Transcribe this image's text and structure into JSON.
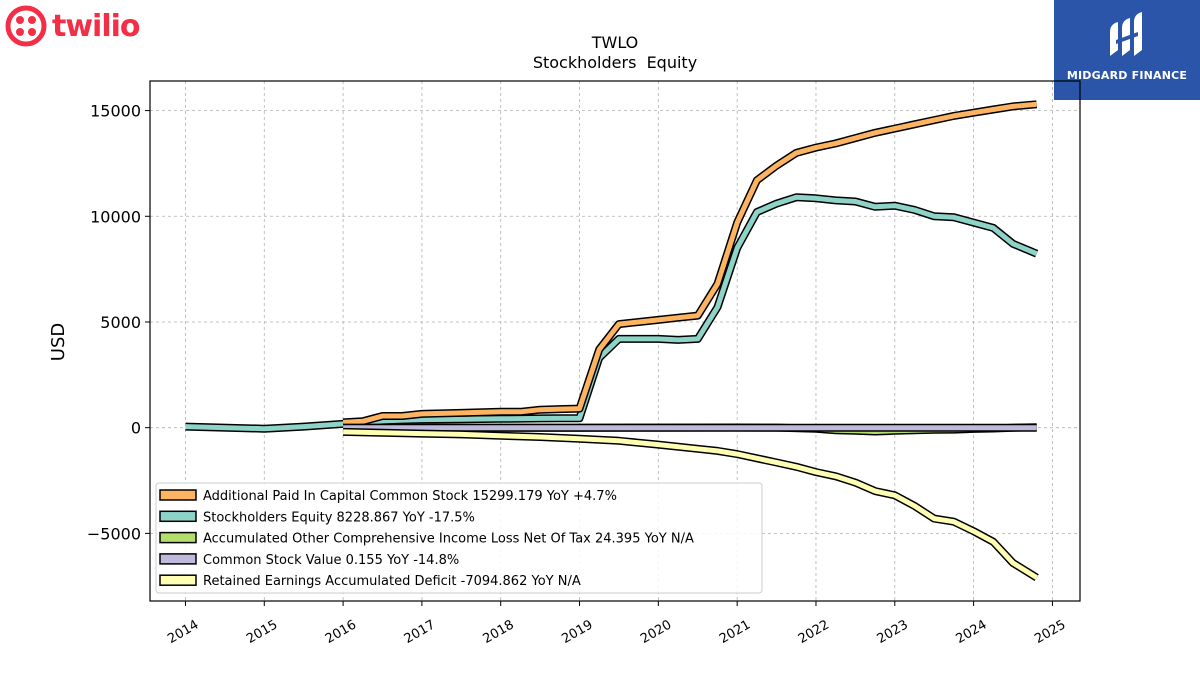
{
  "logos": {
    "left": {
      "text": "twilio",
      "color": "#f22f46"
    },
    "right": {
      "text": "MIDGARD FINANCE",
      "background": "#2a55a8"
    }
  },
  "chart_data": {
    "type": "line",
    "title": "TWLO",
    "subtitle": "Stockholders  Equity",
    "xlabel": "",
    "ylabel": "USD",
    "xlim": [
      2013.55,
      2025.35
    ],
    "ylim": [
      -8200,
      16400
    ],
    "xticks": [
      2014,
      2015,
      2016,
      2017,
      2018,
      2019,
      2020,
      2021,
      2022,
      2023,
      2024,
      2025
    ],
    "xtick_labels": [
      "2014",
      "2015",
      "2016",
      "2017",
      "2018",
      "2019",
      "2020",
      "2021",
      "2022",
      "2023",
      "2024",
      "2025"
    ],
    "yticks": [
      -5000,
      0,
      5000,
      10000,
      15000
    ],
    "ytick_labels": [
      "−5000",
      "0",
      "5000",
      "10000",
      "15000"
    ],
    "grid": true,
    "legend_position": "lower-left",
    "series": [
      {
        "name": "Stockholders Equity",
        "legend": "Stockholders Equity  8228.867 YoY -17.5%",
        "color": "#8dd3c7",
        "x": [
          2014.0,
          2015.0,
          2015.5,
          2016.0,
          2016.25,
          2016.5,
          2016.75,
          2017.0,
          2017.5,
          2018.0,
          2018.25,
          2018.5,
          2018.75,
          2019.0,
          2019.25,
          2019.5,
          2019.75,
          2020.0,
          2020.25,
          2020.5,
          2020.75,
          2021.0,
          2021.25,
          2021.5,
          2021.75,
          2022.0,
          2022.25,
          2022.5,
          2022.75,
          2023.0,
          2023.25,
          2023.5,
          2023.75,
          2024.0,
          2024.25,
          2024.5,
          2024.8
        ],
        "y": [
          50,
          -50,
          50,
          180,
          250,
          320,
          360,
          380,
          400,
          420,
          430,
          440,
          450,
          450,
          3300,
          4200,
          4200,
          4200,
          4150,
          4200,
          5700,
          8500,
          10200,
          10600,
          10900,
          10850,
          10750,
          10700,
          10450,
          10500,
          10300,
          10000,
          9950,
          9700,
          9450,
          8700,
          8229
        ]
      },
      {
        "name": "Additional Paid In Capital Common Stock",
        "legend": "Additional Paid In Capital Common Stock  15299.179 YoY +4.7%",
        "color": "#fdb462",
        "x": [
          2016.0,
          2016.25,
          2016.5,
          2016.75,
          2017.0,
          2017.5,
          2018.0,
          2018.25,
          2018.5,
          2018.75,
          2019.0,
          2019.25,
          2019.5,
          2019.75,
          2020.0,
          2020.25,
          2020.5,
          2020.75,
          2021.0,
          2021.25,
          2021.5,
          2021.75,
          2022.0,
          2022.25,
          2022.5,
          2022.75,
          2023.0,
          2023.25,
          2023.5,
          2023.75,
          2024.0,
          2024.25,
          2024.5,
          2024.8
        ],
        "y": [
          250,
          300,
          550,
          550,
          650,
          700,
          750,
          750,
          850,
          880,
          900,
          3700,
          4900,
          5000,
          5100,
          5200,
          5300,
          6800,
          9700,
          11700,
          12400,
          13000,
          13250,
          13450,
          13700,
          13950,
          14150,
          14350,
          14550,
          14750,
          14900,
          15050,
          15200,
          15299
        ]
      },
      {
        "name": "Accumulated Other Comprehensive Income Loss Net Of Tax",
        "legend": "Accumulated Other Comprehensive Income Loss Net Of Tax  24.395 YoY N/A",
        "color": "#b3de69",
        "x": [
          2016.0,
          2017.0,
          2018.0,
          2019.0,
          2020.0,
          2021.0,
          2021.5,
          2022.0,
          2022.25,
          2022.5,
          2022.75,
          2023.0,
          2023.25,
          2023.5,
          2023.75,
          2024.0,
          2024.25,
          2024.5,
          2024.8
        ],
        "y": [
          0,
          0,
          -5,
          0,
          5,
          10,
          5,
          -50,
          -120,
          -150,
          -180,
          -150,
          -120,
          -100,
          -90,
          -60,
          -40,
          0,
          24
        ]
      },
      {
        "name": "Common Stock Value",
        "legend": "Common Stock Value  0.155 YoY -14.8%",
        "color": "#bebada",
        "x": [
          2016.0,
          2018.0,
          2020.0,
          2022.0,
          2024.0,
          2024.8
        ],
        "y": [
          0.1,
          0.1,
          0.15,
          0.18,
          0.18,
          0.155
        ]
      },
      {
        "name": "Retained Earnings Accumulated Deficit",
        "legend": "Retained Earnings Accumulated Deficit  -7094.862 YoY N/A",
        "color": "#ffffb3",
        "x": [
          2016.0,
          2016.5,
          2017.0,
          2017.5,
          2018.0,
          2018.5,
          2019.0,
          2019.5,
          2020.0,
          2020.5,
          2020.75,
          2021.0,
          2021.25,
          2021.5,
          2021.75,
          2022.0,
          2022.25,
          2022.5,
          2022.75,
          2023.0,
          2023.25,
          2023.5,
          2023.75,
          2024.0,
          2024.25,
          2024.5,
          2024.8
        ],
        "y": [
          -200,
          -240,
          -280,
          -320,
          -380,
          -440,
          -520,
          -620,
          -800,
          -1000,
          -1100,
          -1250,
          -1450,
          -1650,
          -1850,
          -2100,
          -2300,
          -2600,
          -3000,
          -3200,
          -3700,
          -4300,
          -4450,
          -4900,
          -5400,
          -6400,
          -7095
        ]
      }
    ],
    "legend_order": [
      "Additional Paid In Capital Common Stock",
      "Stockholders Equity",
      "Accumulated Other Comprehensive Income Loss Net Of Tax",
      "Common Stock Value",
      "Retained Earnings Accumulated Deficit"
    ],
    "draw_order": [
      "Stockholders Equity",
      "Additional Paid In Capital Common Stock",
      "Accumulated Other Comprehensive Income Loss Net Of Tax",
      "Common Stock Value",
      "Retained Earnings Accumulated Deficit"
    ]
  }
}
